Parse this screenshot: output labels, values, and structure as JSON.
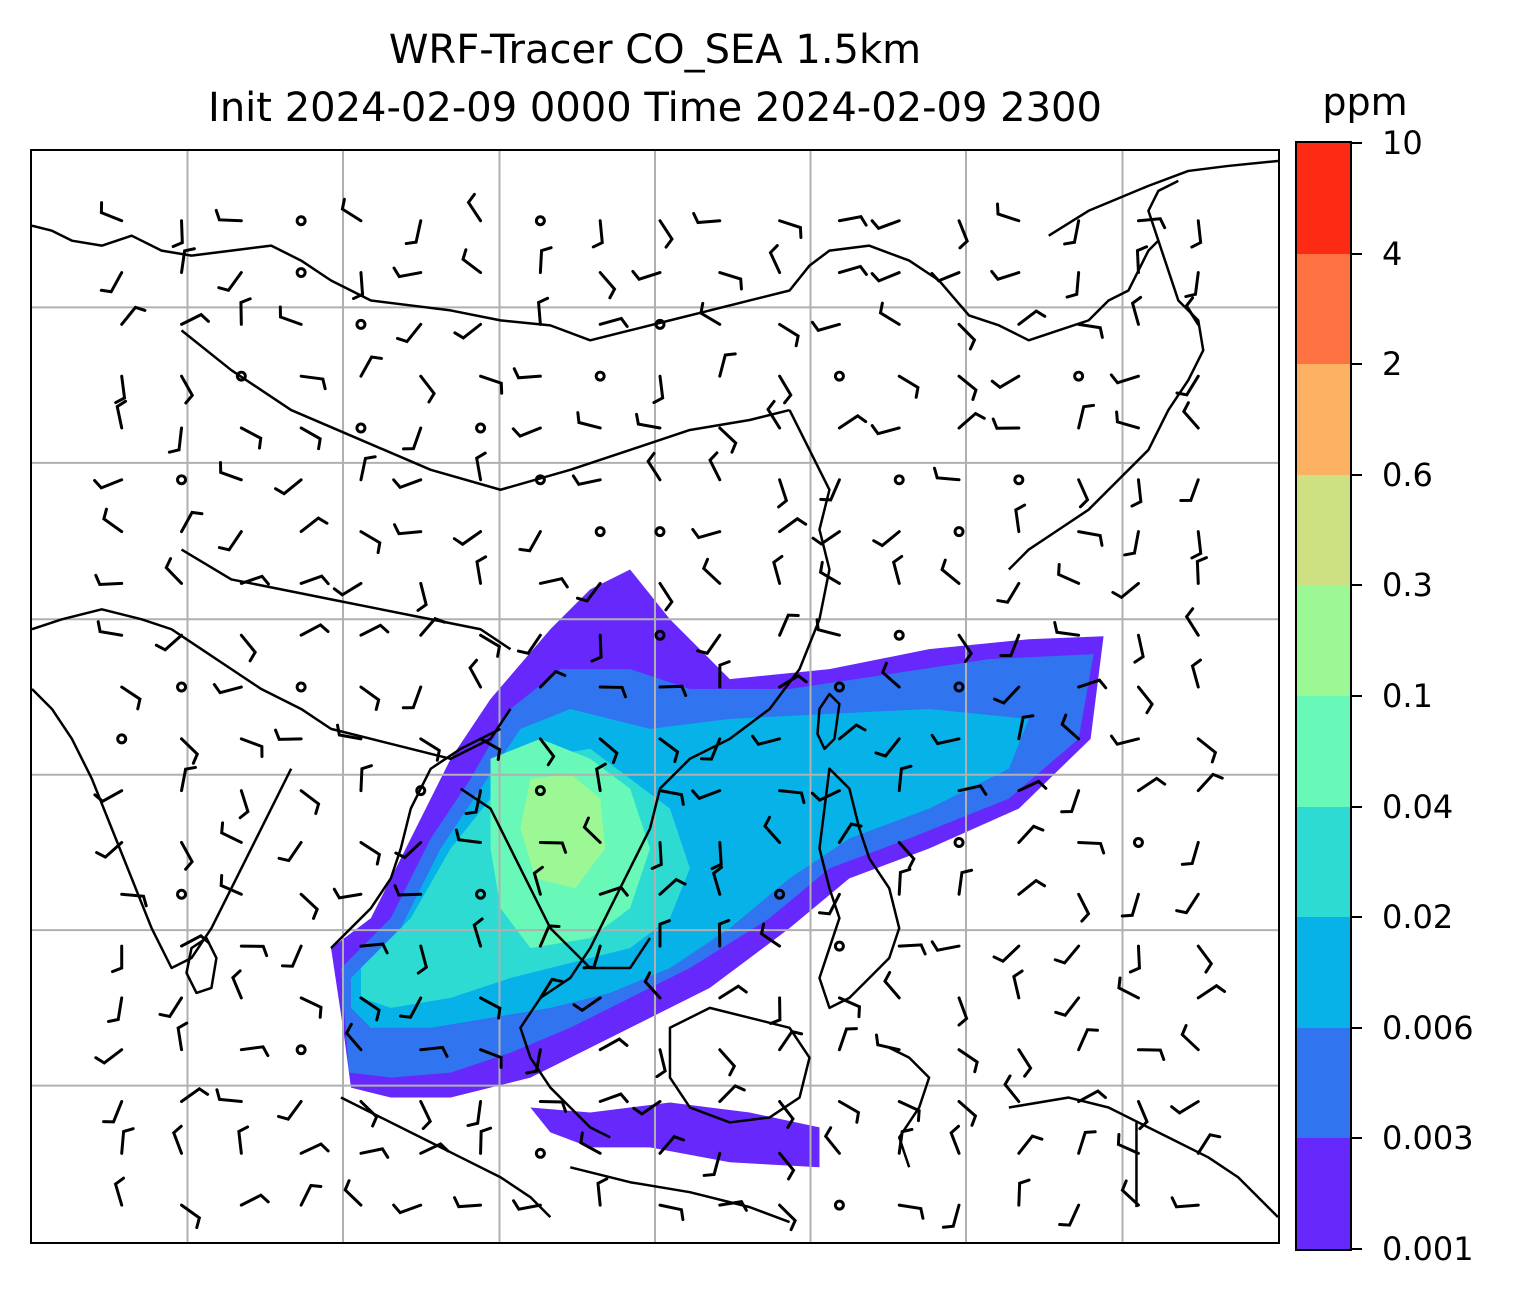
{
  "title": {
    "line1": "WRF-Tracer CO_SEA 1.5km",
    "line2": "Init 2024-02-09 0000 Time 2024-02-09 2300"
  },
  "colorbar": {
    "units": "ppm",
    "levels": [
      "0.001",
      "0.003",
      "0.006",
      "0.02",
      "0.04",
      "0.1",
      "0.3",
      "0.6",
      "2",
      "4",
      "10"
    ],
    "colors": [
      "#6628fb",
      "#3174f0",
      "#06b2e8",
      "#2ddbd3",
      "#68f8b8",
      "#9bf894",
      "#cde182",
      "#fcb062",
      "#fd7240",
      "#fd2a14"
    ]
  },
  "map": {
    "gridline_color": "#b0b0b0",
    "coastline_color": "#000000"
  }
}
